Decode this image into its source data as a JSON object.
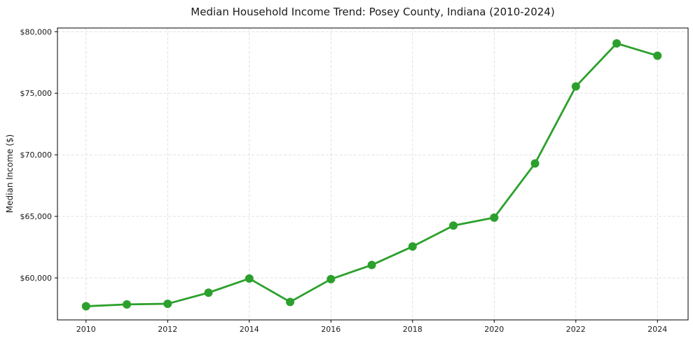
{
  "chart_data": {
    "type": "line",
    "title": "Median Household Income Trend: Posey County, Indiana (2010-2024)",
    "ylabel": "Median Income ($)",
    "xlabel": "",
    "x": [
      2010,
      2011,
      2012,
      2013,
      2014,
      2015,
      2016,
      2017,
      2018,
      2019,
      2020,
      2021,
      2022,
      2023,
      2024
    ],
    "values": [
      57700,
      57850,
      57900,
      58800,
      59950,
      58050,
      59900,
      61050,
      62550,
      64250,
      64900,
      69300,
      75550,
      79050,
      78050
    ],
    "series_name": "Median Household Income",
    "line_color": "#2ca02c",
    "marker": "circle",
    "marker_color": "#2ca02c",
    "xlim": [
      2009.3,
      2024.75
    ],
    "ylim": [
      56590,
      80300
    ],
    "xticks": [
      2010,
      2012,
      2014,
      2016,
      2018,
      2020,
      2022,
      2024
    ],
    "xtick_labels": [
      "2010",
      "2012",
      "2014",
      "2016",
      "2018",
      "2020",
      "2022",
      "2024"
    ],
    "yticks": [
      60000,
      65000,
      70000,
      75000,
      80000
    ],
    "ytick_labels": [
      "$60,000",
      "$65,000",
      "$70,000",
      "$75,000",
      "$80,000"
    ],
    "grid": "dashed",
    "grid_color": "#d8d8d8",
    "spine_color": "#000000",
    "legend": "none"
  }
}
